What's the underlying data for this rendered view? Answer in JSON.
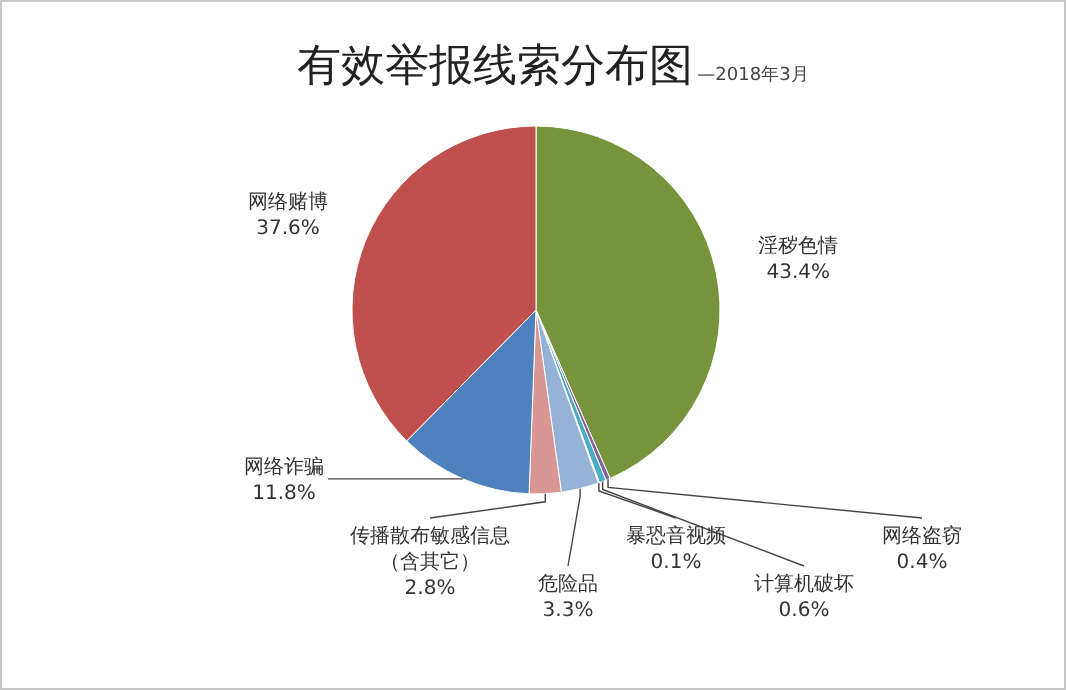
{
  "chart_data": {
    "type": "pie",
    "title": "有效举报线索分布图",
    "subtitle": "—2018年3月",
    "categories": [
      "淫秽色情",
      "网络盗窃",
      "计算机破坏",
      "暴恐音视频",
      "危险品",
      "传播散布敏感信息（含其它）",
      "网络诈骗",
      "网络赌博"
    ],
    "values": [
      43.4,
      0.4,
      0.6,
      0.1,
      3.3,
      2.8,
      11.8,
      37.6
    ],
    "value_labels": [
      "43.4%",
      "0.4%",
      "0.6%",
      "0.1%",
      "3.3%",
      "2.8%",
      "11.8%",
      "37.6%"
    ],
    "colors": [
      "#77933c",
      "#8064a2",
      "#4bacc6",
      "#f79646",
      "#95b3d7",
      "#d99694",
      "#4f81bd",
      "#c0504d"
    ]
  }
}
